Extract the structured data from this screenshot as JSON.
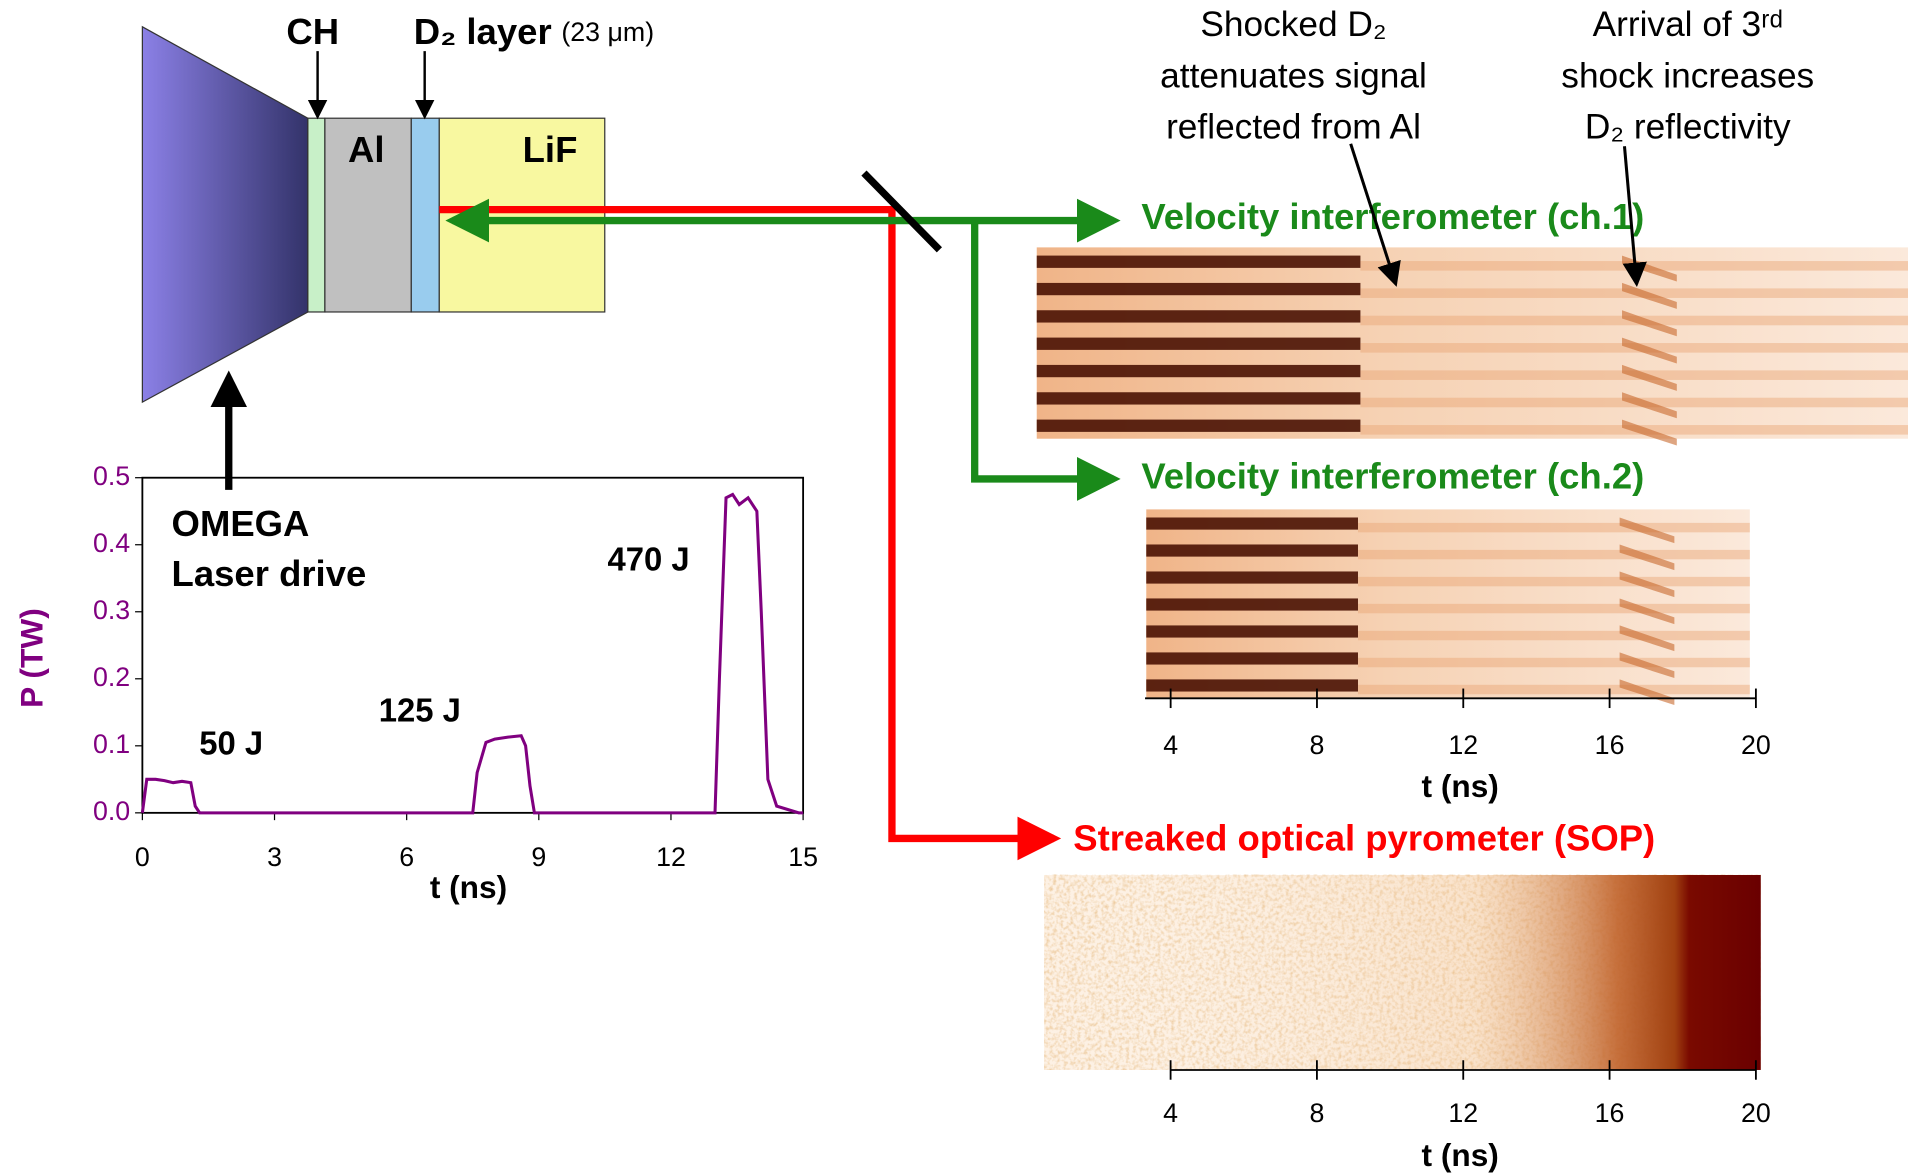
{
  "target": {
    "ch": "CH",
    "d2_layer": "D₂ layer",
    "d2_thickness": "(23 μm)",
    "al": "Al",
    "lif": "LiF"
  },
  "beams": {
    "vi1": "Velocity interferometer (ch.1)",
    "vi2": "Velocity interferometer (ch.2)",
    "sop": "Streaked optical pyrometer (SOP)"
  },
  "annotations": {
    "shocked": [
      "Shocked D₂",
      "attenuates signal",
      "reflected from Al"
    ],
    "arrival": [
      "Arrival of 3ʳᵈ",
      "shock increases",
      "D₂ reflectivity"
    ]
  },
  "chart_data": [
    {
      "type": "line",
      "xlabel": "t (ns)",
      "ylabel": "P (TW)",
      "color": "#800080",
      "x": [
        0,
        0.1,
        0.3,
        0.5,
        0.7,
        0.9,
        1.1,
        1.2,
        1.3,
        7.5,
        7.6,
        7.8,
        8.0,
        8.3,
        8.6,
        8.7,
        8.8,
        8.9,
        13.0,
        13.1,
        13.25,
        13.4,
        13.55,
        13.75,
        13.95,
        14.05,
        14.2,
        14.4,
        14.9,
        15
      ],
      "values": [
        0,
        0.05,
        0.05,
        0.048,
        0.045,
        0.047,
        0.045,
        0.01,
        0,
        0,
        0.06,
        0.105,
        0.11,
        0.113,
        0.115,
        0.1,
        0.04,
        0,
        0,
        0.2,
        0.47,
        0.475,
        0.46,
        0.47,
        0.45,
        0.3,
        0.05,
        0.01,
        0,
        0
      ],
      "xlim": [
        0,
        15
      ],
      "xticks": [
        0,
        3,
        6,
        9,
        12,
        15
      ],
      "ylim": [
        0,
        0.5
      ],
      "yticks": [
        {
          "value": 0,
          "label": "0.0"
        },
        0.1,
        0.2,
        0.3,
        0.4,
        0.5
      ],
      "annotations": [
        "OMEGA",
        "Laser drive",
        "50 J",
        "125 J",
        "470 J"
      ]
    },
    {
      "type": "image",
      "xlabel": "t (ns)",
      "xlim": [
        3.3,
        20
      ],
      "xticks": [
        4,
        8,
        12,
        16,
        20
      ]
    },
    {
      "type": "image",
      "xlabel": "t (ns)",
      "xlim": [
        4,
        20
      ],
      "xticks": [
        4,
        8,
        12,
        16,
        20
      ]
    }
  ]
}
